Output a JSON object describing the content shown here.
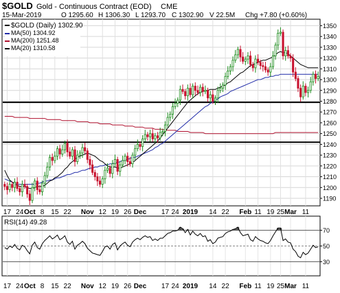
{
  "header": {
    "symbol": "$GOLD",
    "name": "Gold - Continuous Contract (EOD)",
    "exchange": "CME",
    "date": "15-Mar-2019",
    "open": "O 1295.60",
    "high": "H 1306.30",
    "low": "L 1293.70",
    "close": "C 1302.90",
    "volume": "V 22.5M",
    "change": "Chg +7.80 (+0.60%)"
  },
  "chart_data": [
    {
      "type": "candlestick",
      "title": "$GOLD (Daily) 1302.90",
      "legend": [
        {
          "label": "$GOLD (Daily) 1302.90",
          "color": "#000000"
        },
        {
          "label": "MA(50) 1304.92",
          "color": "#1f2aa8"
        },
        {
          "label": "MA(200) 1251.48",
          "color": "#b0102e"
        },
        {
          "label": "MA(20) 1310.58",
          "color": "#000000"
        }
      ],
      "legend_position": "top-left",
      "ylim": [
        1183,
        1356
      ],
      "y_ticks": [
        1190,
        1200,
        1210,
        1220,
        1230,
        1240,
        1250,
        1260,
        1270,
        1280,
        1290,
        1300,
        1310,
        1320,
        1330,
        1340,
        1350
      ],
      "x_ticks": [
        {
          "label": "17",
          "i": 1
        },
        {
          "label": "24",
          "i": 6
        },
        {
          "label": "Oct",
          "i": 10,
          "bold": true
        },
        {
          "label": "8",
          "i": 15
        },
        {
          "label": "15",
          "i": 20
        },
        {
          "label": "22",
          "i": 25
        },
        {
          "label": "Nov",
          "i": 33,
          "bold": true
        },
        {
          "label": "12",
          "i": 39
        },
        {
          "label": "19",
          "i": 44
        },
        {
          "label": "26",
          "i": 49
        },
        {
          "label": "Dec",
          "i": 54,
          "bold": true
        },
        {
          "label": "17",
          "i": 64
        },
        {
          "label": "24",
          "i": 68
        },
        {
          "label": "2019",
          "i": 74,
          "bold": true
        },
        {
          "label": "14",
          "i": 83
        },
        {
          "label": "22",
          "i": 88
        },
        {
          "label": "Feb",
          "i": 96,
          "bold": true
        },
        {
          "label": "11",
          "i": 101
        },
        {
          "label": "19",
          "i": 106
        },
        {
          "label": "25",
          "i": 110
        },
        {
          "label": "Mar",
          "i": 114,
          "bold": true
        },
        {
          "label": "11",
          "i": 120
        }
      ],
      "horizontal_lines": [
        1279,
        1242
      ],
      "close": [
        1201,
        1198,
        1203,
        1200,
        1205,
        1199,
        1196,
        1203,
        1201,
        1194,
        1188,
        1200,
        1206,
        1198,
        1196,
        1204,
        1211,
        1219,
        1228,
        1225,
        1229,
        1236,
        1231,
        1235,
        1241,
        1233,
        1229,
        1235,
        1224,
        1230,
        1232,
        1237,
        1234,
        1226,
        1221,
        1214,
        1210,
        1206,
        1203,
        1208,
        1216,
        1218,
        1213,
        1222,
        1226,
        1215,
        1221,
        1225,
        1229,
        1224,
        1222,
        1230,
        1236,
        1240,
        1238,
        1245,
        1249,
        1247,
        1250,
        1245,
        1248,
        1246,
        1251,
        1252,
        1258,
        1265,
        1268,
        1275,
        1278,
        1281,
        1291,
        1289,
        1285,
        1292,
        1286,
        1294,
        1290,
        1288,
        1293,
        1289,
        1290,
        1283,
        1286,
        1280,
        1283,
        1290,
        1292,
        1295,
        1303,
        1308,
        1312,
        1318,
        1323,
        1328,
        1321,
        1317,
        1319,
        1322,
        1314,
        1311,
        1319,
        1316,
        1313,
        1312,
        1309,
        1307,
        1312,
        1322,
        1332,
        1343,
        1344,
        1322,
        1327,
        1322,
        1320,
        1307,
        1301,
        1292,
        1284,
        1294,
        1288,
        1290,
        1298,
        1305,
        1301,
        1303
      ],
      "ma20": [
        1216,
        1211,
        1207,
        1205,
        1203,
        1202,
        1201,
        1201,
        1201,
        1200,
        1199,
        1199,
        1200,
        1201,
        1201,
        1201,
        1202,
        1204,
        1206,
        1207,
        1209,
        1210,
        1212,
        1214,
        1217,
        1219,
        1222,
        1224,
        1226,
        1228,
        1229,
        1230,
        1231,
        1232,
        1231,
        1230,
        1229,
        1227,
        1225,
        1224,
        1222,
        1220,
        1219,
        1219,
        1219,
        1218,
        1218,
        1219,
        1220,
        1221,
        1222,
        1223,
        1225,
        1227,
        1229,
        1231,
        1233,
        1235,
        1237,
        1239,
        1241,
        1243,
        1246,
        1249,
        1252,
        1255,
        1258,
        1261,
        1264,
        1267,
        1270,
        1273,
        1276,
        1279,
        1281,
        1283,
        1285,
        1287,
        1288,
        1289,
        1290,
        1290,
        1291,
        1291,
        1291,
        1292,
        1293,
        1294,
        1295,
        1297,
        1298,
        1300,
        1302,
        1304,
        1306,
        1307,
        1309,
        1311,
        1313,
        1314,
        1315,
        1316,
        1317,
        1318,
        1318,
        1319,
        1320,
        1321,
        1323,
        1325,
        1326,
        1325,
        1325,
        1324,
        1322,
        1320,
        1318,
        1316,
        1314,
        1313,
        1312,
        1311,
        1311,
        1311,
        1311,
        1311
      ],
      "ma50": [
        1208,
        1207,
        1206,
        1205,
        1204,
        1203,
        1203,
        1203,
        1203,
        1203,
        1203,
        1203,
        1203,
        1204,
        1204,
        1205,
        1206,
        1206,
        1207,
        1207,
        1208,
        1209,
        1209,
        1210,
        1211,
        1212,
        1212,
        1213,
        1214,
        1214,
        1215,
        1216,
        1216,
        1217,
        1218,
        1218,
        1219,
        1219,
        1220,
        1220,
        1221,
        1221,
        1222,
        1222,
        1223,
        1223,
        1224,
        1225,
        1225,
        1226,
        1227,
        1228,
        1228,
        1229,
        1230,
        1231,
        1232,
        1233,
        1234,
        1235,
        1237,
        1238,
        1240,
        1241,
        1243,
        1245,
        1247,
        1249,
        1251,
        1253,
        1255,
        1257,
        1259,
        1261,
        1263,
        1265,
        1267,
        1269,
        1271,
        1273,
        1275,
        1276,
        1278,
        1279,
        1281,
        1282,
        1284,
        1285,
        1286,
        1287,
        1289,
        1290,
        1291,
        1292,
        1293,
        1294,
        1295,
        1296,
        1297,
        1298,
        1299,
        1300,
        1300,
        1301,
        1302,
        1302,
        1303,
        1303,
        1304,
        1304,
        1305,
        1305,
        1305,
        1305,
        1305,
        1305,
        1305,
        1305,
        1305,
        1305,
        1305,
        1305,
        1305,
        1305,
        1305,
        1305
      ],
      "ma200": [
        1266,
        1266,
        1266,
        1266,
        1265,
        1265,
        1265,
        1265,
        1265,
        1265,
        1264,
        1264,
        1264,
        1264,
        1264,
        1264,
        1264,
        1263,
        1263,
        1263,
        1263,
        1263,
        1263,
        1262,
        1262,
        1262,
        1262,
        1262,
        1262,
        1261,
        1261,
        1261,
        1261,
        1261,
        1260,
        1260,
        1260,
        1260,
        1259,
        1259,
        1259,
        1259,
        1259,
        1258,
        1258,
        1258,
        1258,
        1258,
        1257,
        1257,
        1257,
        1257,
        1256,
        1256,
        1256,
        1256,
        1255,
        1255,
        1255,
        1255,
        1254,
        1254,
        1254,
        1254,
        1253,
        1253,
        1253,
        1253,
        1253,
        1252,
        1252,
        1252,
        1252,
        1252,
        1251,
        1251,
        1251,
        1251,
        1251,
        1251,
        1250,
        1250,
        1250,
        1250,
        1250,
        1250,
        1250,
        1250,
        1250,
        1250,
        1250,
        1250,
        1250,
        1250,
        1250,
        1250,
        1250,
        1250,
        1250,
        1250,
        1250,
        1250,
        1250,
        1250,
        1250,
        1250,
        1250,
        1250,
        1251,
        1251,
        1251,
        1251,
        1251,
        1251,
        1251,
        1251,
        1251,
        1251,
        1251,
        1251,
        1251,
        1251,
        1251,
        1251,
        1251,
        1251
      ]
    },
    {
      "type": "line",
      "title": "RSI(14) 49.28",
      "ylim": [
        12,
        88
      ],
      "y_ticks": [
        30,
        50,
        70
      ],
      "reference_lines": [
        70,
        50,
        30
      ],
      "values": [
        48,
        46,
        50,
        48,
        52,
        47,
        45,
        51,
        49,
        44,
        40,
        51,
        55,
        48,
        46,
        53,
        57,
        60,
        63,
        59,
        61,
        64,
        58,
        60,
        63,
        55,
        52,
        56,
        46,
        51,
        53,
        56,
        53,
        47,
        44,
        41,
        40,
        39,
        38,
        43,
        49,
        50,
        46,
        52,
        54,
        45,
        50,
        53,
        55,
        51,
        49,
        55,
        58,
        60,
        58,
        61,
        63,
        61,
        62,
        57,
        59,
        57,
        60,
        60,
        63,
        66,
        67,
        69,
        69,
        70,
        74,
        72,
        67,
        71,
        64,
        69,
        65,
        63,
        66,
        62,
        63,
        56,
        58,
        53,
        55,
        60,
        61,
        62,
        66,
        68,
        69,
        71,
        72,
        74,
        67,
        63,
        64,
        65,
        58,
        56,
        62,
        59,
        57,
        56,
        54,
        53,
        57,
        63,
        68,
        73,
        73,
        57,
        59,
        55,
        54,
        46,
        43,
        37,
        35,
        42,
        39,
        41,
        46,
        51,
        48,
        49
      ]
    }
  ]
}
